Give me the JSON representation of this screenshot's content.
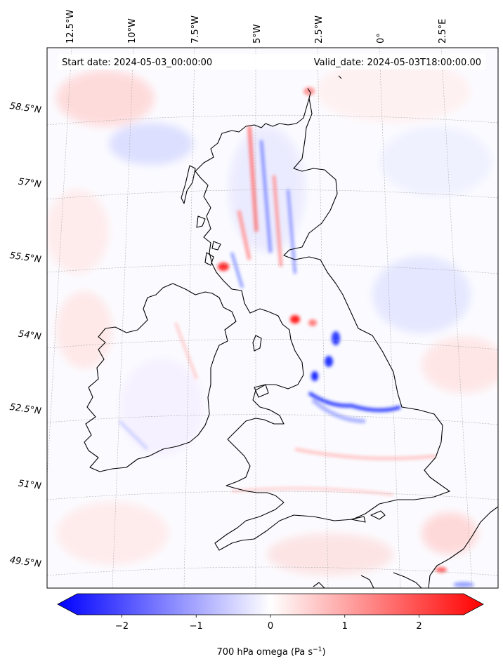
{
  "header": {
    "start_date": "Start date: 2024-05-03_00:00:00",
    "valid_date": "Valid_date: 2024-05-03T18:00:00.00"
  },
  "map": {
    "lon_ticks": [
      "12.5°W",
      "10°W",
      "7.5°W",
      "5°W",
      "2.5°W",
      "0°",
      "2.5°E"
    ],
    "lat_ticks": [
      "58.5°N",
      "57°N",
      "55.5°N",
      "54°N",
      "52.5°N",
      "51°N",
      "49.5°N"
    ],
    "coastline_color": "#000000",
    "gridline_color": "#aaaaaa"
  },
  "colorbar": {
    "label_main": "700 hPa omega (Pa s",
    "label_sup": "−1",
    "label_end": ")",
    "ticks": [
      "−2",
      "−1",
      "0",
      "1",
      "2"
    ],
    "tick_values": [
      -2,
      -1,
      0,
      1,
      2
    ],
    "range": [
      -2.6,
      2.6
    ],
    "cmap": "bwr",
    "extend": "both",
    "color_low": "#0000ff",
    "color_mid": "#ffffff",
    "color_high": "#ff0000"
  }
}
